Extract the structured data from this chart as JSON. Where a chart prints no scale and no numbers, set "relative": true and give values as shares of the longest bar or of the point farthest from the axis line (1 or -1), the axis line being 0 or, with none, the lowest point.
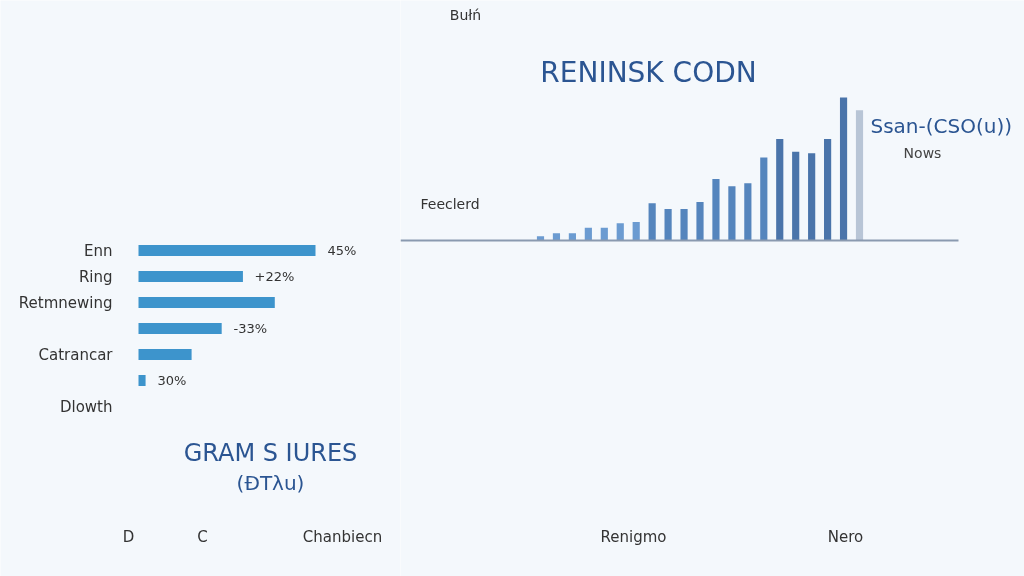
{
  "chart_data": [
    {
      "type": "bar",
      "orientation": "horizontal",
      "relative": true,
      "title": "GRAM S IURES",
      "subtitle": "(ĐTλu)",
      "categories": [
        "Enn",
        "Ring",
        "Retmnewing",
        null,
        "Catrancar",
        null,
        "Dlowth"
      ],
      "values": [
        1,
        0.59,
        0.77,
        0.47,
        0.3,
        0.04,
        null
      ],
      "color": "#3d94cc",
      "annotations": [
        "45%",
        "+22%",
        "-33%",
        "30%",
        "D",
        "C",
        "Chanbiecn"
      ]
    },
    {
      "type": "bar",
      "relative": true,
      "title": "RENINSK CODN",
      "categories": [
        null,
        null,
        null,
        null,
        null,
        null,
        null,
        null,
        null,
        null,
        null,
        null,
        null,
        null,
        null,
        null,
        null,
        null,
        null,
        null,
        null
      ],
      "values": [
        0.03,
        0.05,
        0.05,
        0.09,
        0.09,
        0.12,
        0.13,
        0.26,
        0.22,
        0.22,
        0.27,
        0.43,
        0.38,
        0.4,
        0.58,
        0.71,
        0.62,
        0.61,
        0.71,
        1,
        0.91
      ],
      "colors": [
        "#6b9bd1",
        "#6b9bd1",
        "#6b9bd1",
        "#6b9bd1",
        "#6b9bd1",
        "#6b9bd1",
        "#6b9bd1",
        "#5585bd",
        "#5585bd",
        "#5585bd",
        "#5585bd",
        "#5585bd",
        "#5585bd",
        "#5585bd",
        "#5585bd",
        "#4a74aa",
        "#4a74aa",
        "#4a74aa",
        "#4a74aa",
        "#4a74aa",
        "#b8c5d6"
      ],
      "annotations": [
        "Bułń",
        "Feeclerd",
        "Ssan-(CSO(u))",
        "Nows",
        "Renigmo",
        "Nero"
      ]
    }
  ]
}
